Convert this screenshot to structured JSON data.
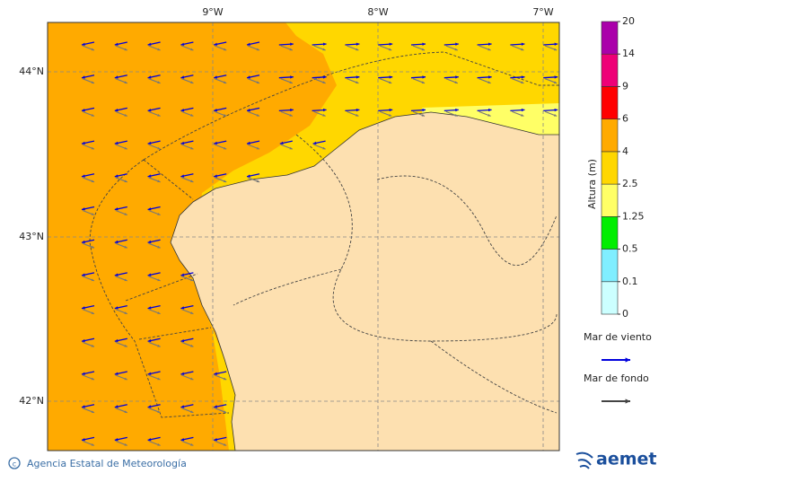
{
  "map": {
    "longitude_labels": [
      "9°W",
      "8°W",
      "7°W"
    ],
    "latitude_labels": [
      "44°N",
      "43°N",
      "42°N"
    ]
  },
  "colorbar": {
    "label": "Altura (m)",
    "levels": [
      0,
      0.1,
      0.5,
      1.25,
      2.5,
      4,
      6,
      9,
      14,
      20
    ],
    "colors": [
      "#ccffff",
      "#80eeff",
      "#00ee00",
      "#ffff66",
      "#ffd700",
      "#ffaa00",
      "#ff0000",
      "#ee0077",
      "#aa00aa"
    ]
  },
  "legend": [
    {
      "label": "Mar de viento",
      "color": "#0000dd"
    },
    {
      "label": "Mar de fondo",
      "color": "#444444"
    }
  ],
  "footer": {
    "credit": "Agencia Estatal de Meteorología",
    "logo": "aemet"
  }
}
